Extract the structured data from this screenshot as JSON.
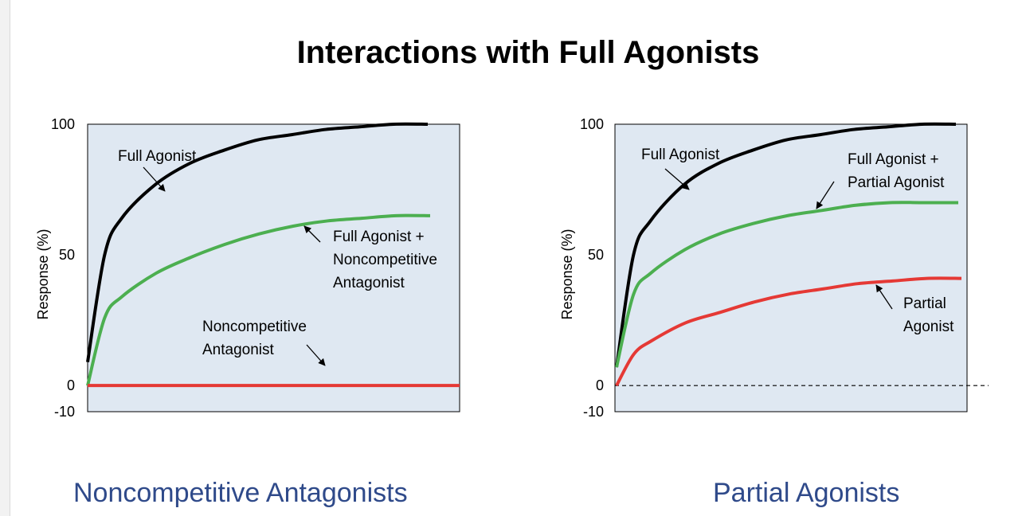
{
  "title": "Interactions with Full Agonists",
  "chart_data": [
    {
      "type": "line",
      "caption": "Noncompetitive Antagonists",
      "ylabel": "Response (%)",
      "ylim": [
        -10,
        100
      ],
      "yticks": [
        "100",
        "50",
        "0",
        "-10"
      ],
      "x_ticks_shown": false,
      "background": "#dfe8f2",
      "series": [
        {
          "name": "Full Agonist",
          "color": "#000000",
          "x": [
            0.0,
            0.05,
            0.1,
            0.2,
            0.3,
            0.4,
            0.5,
            0.6,
            0.7,
            0.8,
            0.9,
            1.0
          ],
          "y": [
            9,
            50,
            64,
            77,
            85,
            90,
            94,
            96,
            98,
            99,
            100,
            100
          ]
        },
        {
          "name": "Full Agonist + Noncompetitive Antagonist",
          "color": "#4caf50",
          "x": [
            0.0,
            0.05,
            0.1,
            0.2,
            0.3,
            0.4,
            0.5,
            0.6,
            0.7,
            0.8,
            0.9,
            1.0
          ],
          "y": [
            0,
            26,
            34,
            43,
            49,
            54,
            58,
            61,
            63,
            64,
            65,
            65
          ]
        },
        {
          "name": "Noncompetitive Antagonist",
          "color": "#e53935",
          "x": [
            0.0,
            1.1
          ],
          "y": [
            0,
            0
          ]
        }
      ],
      "annotations": [
        [
          "Full Agonist"
        ],
        [
          "Full Agonist +",
          "Noncompetitive",
          "Antagonist"
        ],
        [
          "Noncompetitive",
          "Antagonist"
        ]
      ]
    },
    {
      "type": "line",
      "caption": "Partial Agonists",
      "ylabel": "Response (%)",
      "ylim": [
        -10,
        100
      ],
      "yticks": [
        "100",
        "50",
        "0",
        "-10"
      ],
      "x_ticks_shown": false,
      "zero_line": "dashed",
      "background": "#dfe8f2",
      "series": [
        {
          "name": "Full Agonist",
          "color": "#000000",
          "x": [
            0.0,
            0.05,
            0.1,
            0.2,
            0.3,
            0.4,
            0.5,
            0.6,
            0.7,
            0.8,
            0.9,
            1.0
          ],
          "y": [
            7,
            50,
            63,
            77,
            85,
            90,
            94,
            96,
            98,
            99,
            100,
            100
          ]
        },
        {
          "name": "Full Agonist + Partial Agonist",
          "color": "#4caf50",
          "x": [
            0.0,
            0.05,
            0.1,
            0.2,
            0.3,
            0.4,
            0.5,
            0.6,
            0.7,
            0.8,
            0.9,
            1.0
          ],
          "y": [
            7,
            35,
            43,
            52,
            58,
            62,
            65,
            67,
            69,
            70,
            70,
            70
          ]
        },
        {
          "name": "Partial Agonist",
          "color": "#e53935",
          "x": [
            0.0,
            0.05,
            0.1,
            0.2,
            0.3,
            0.4,
            0.5,
            0.6,
            0.7,
            0.8,
            0.9,
            1.0
          ],
          "y": [
            0,
            12,
            17,
            24,
            28,
            32,
            35,
            37,
            39,
            40,
            41,
            41
          ]
        }
      ],
      "annotations": [
        [
          "Full Agonist"
        ],
        [
          "Full Agonist +",
          "Partial Agonist"
        ],
        [
          "Partial",
          "Agonist"
        ]
      ]
    }
  ]
}
